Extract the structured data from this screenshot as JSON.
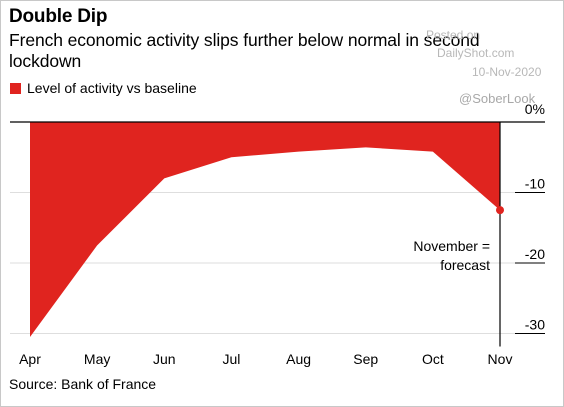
{
  "header": {
    "title": "Double Dip",
    "subtitle": "French economic activity slips further below normal in second lockdown"
  },
  "watermark": {
    "posted": "Posted on",
    "site": "DailyShot.com",
    "date": "10-Nov-2020",
    "handle": "@SoberLook"
  },
  "legend": {
    "label": "Level of activity vs baseline",
    "color": "#e0241f"
  },
  "annotation": {
    "line1": "November =",
    "line2": "forecast"
  },
  "source": "Source: Bank of France",
  "chart_data": {
    "type": "area",
    "categories": [
      "Apr",
      "May",
      "Jun",
      "Jul",
      "Aug",
      "Sep",
      "Oct",
      "Nov"
    ],
    "series": [
      {
        "name": "Level of activity vs baseline",
        "values": [
          -30.5,
          -17.5,
          -8,
          -5,
          -4.2,
          -3.6,
          -4.2,
          -12.5
        ],
        "color": "#e0241f"
      }
    ],
    "ylim": [
      -31,
      0
    ],
    "yticks": [
      0,
      -10,
      -20,
      -30
    ],
    "ytick_labels": [
      "0%",
      "-10",
      "-20",
      "-30"
    ],
    "highlight_point": {
      "category": "Nov",
      "value": -12.5
    },
    "grid": true,
    "legend_position": "top-left",
    "xlabel": "",
    "ylabel": ""
  }
}
